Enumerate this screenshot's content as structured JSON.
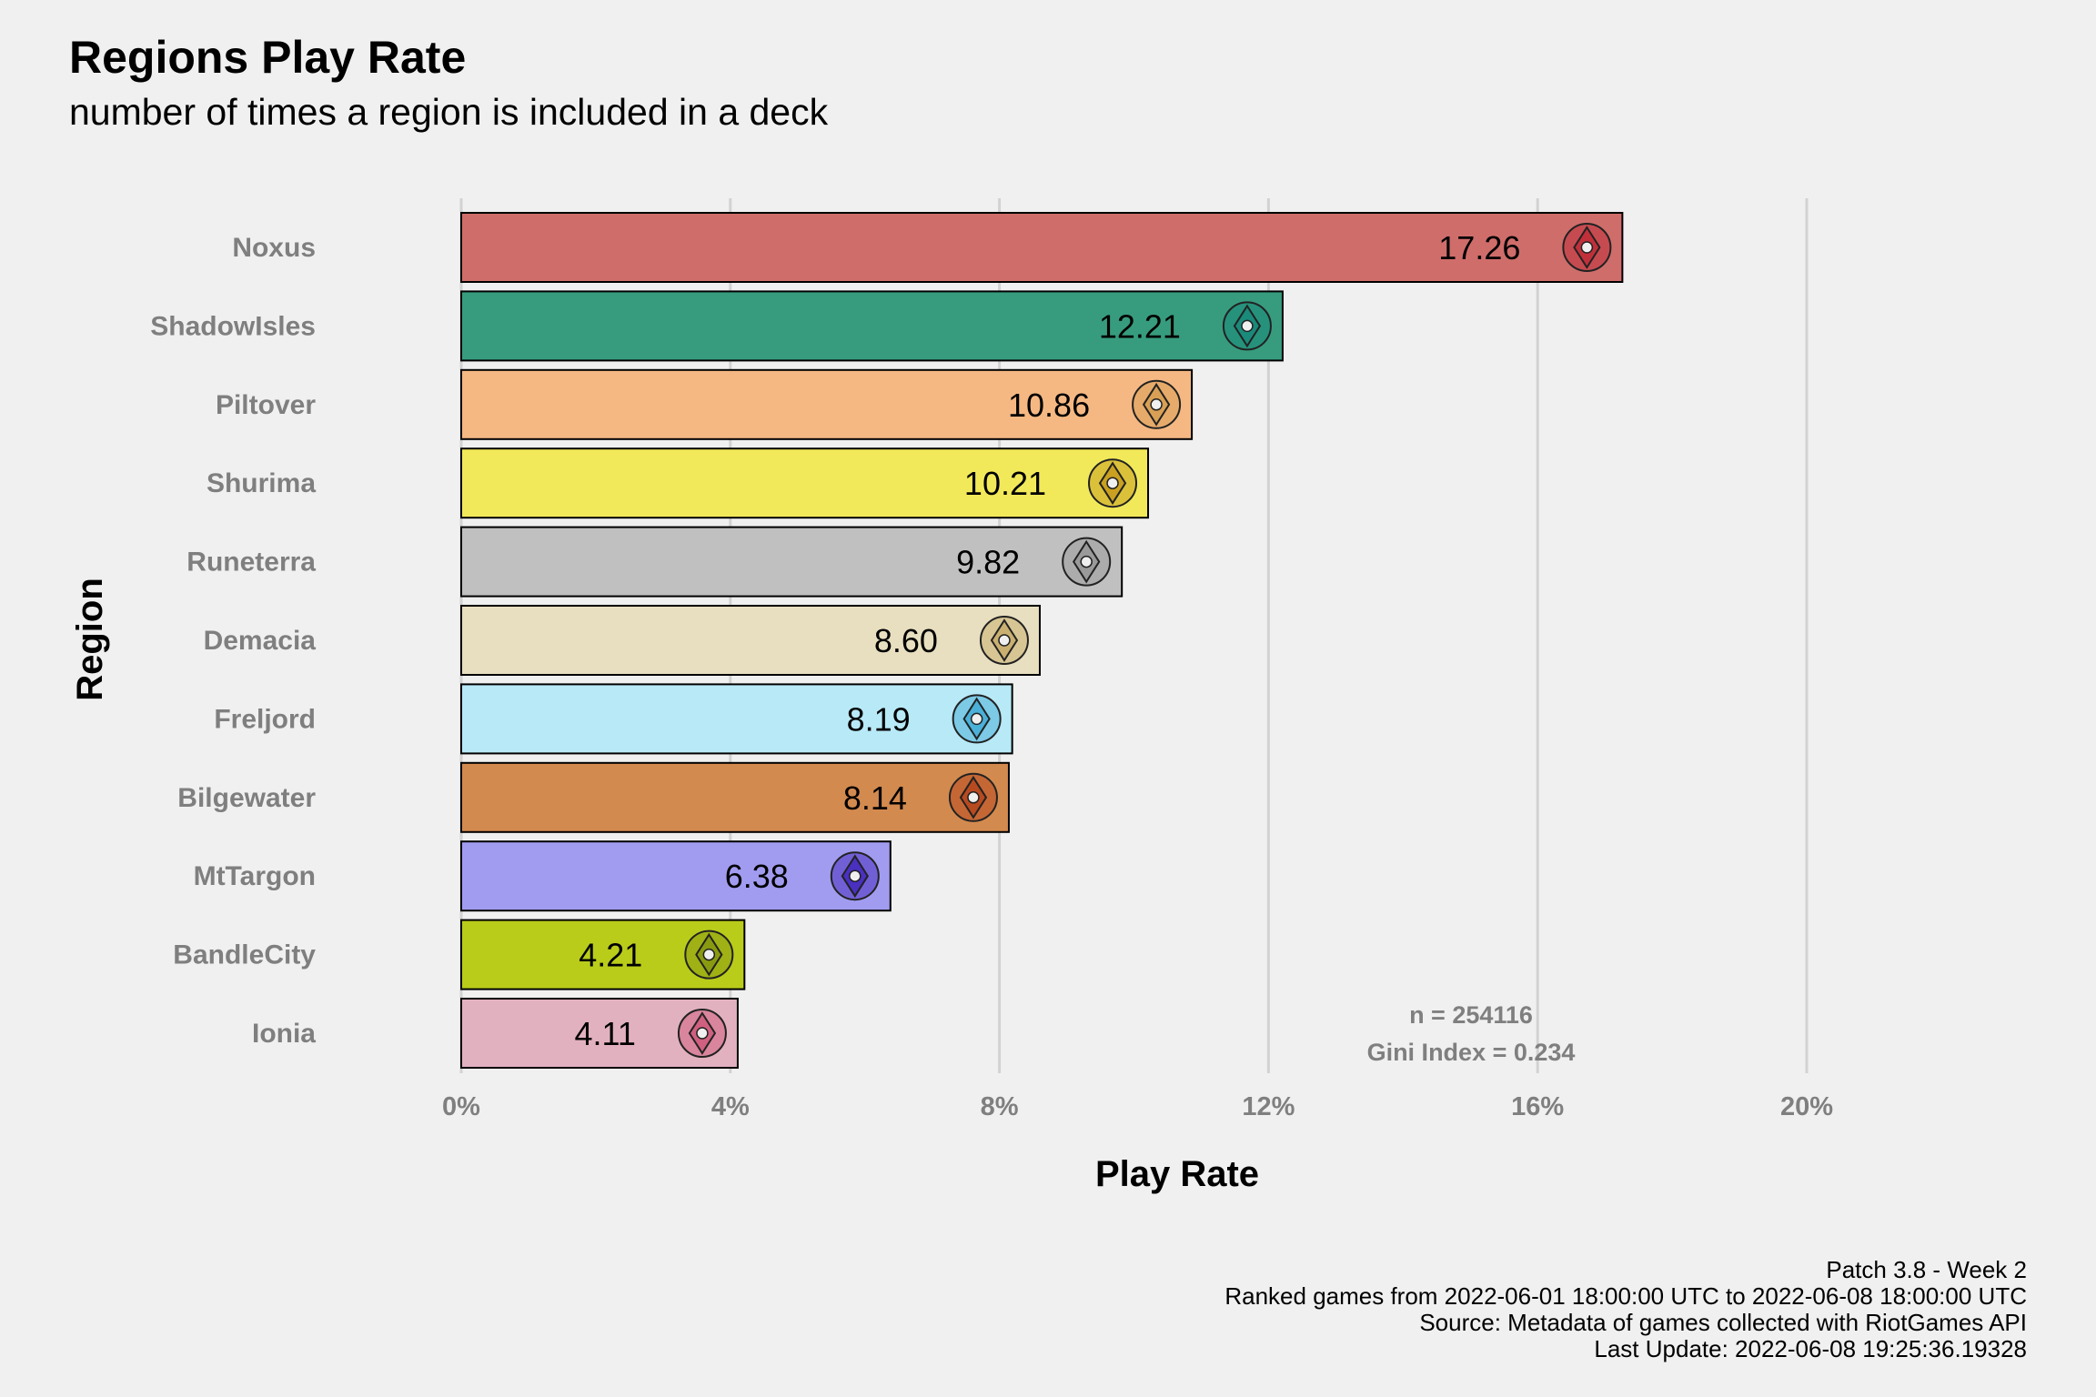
{
  "chart_data": {
    "type": "bar",
    "orientation": "horizontal",
    "title": "Regions Play Rate",
    "subtitle": "number of times a region is included in a deck",
    "xlabel": "Play Rate",
    "ylabel": "Region",
    "categories": [
      "Noxus",
      "ShadowIsles",
      "Piltover",
      "Shurima",
      "Runeterra",
      "Demacia",
      "Freljord",
      "Bilgewater",
      "MtTargon",
      "BandleCity",
      "Ionia"
    ],
    "values": [
      17.26,
      12.21,
      10.86,
      10.21,
      9.82,
      8.6,
      8.19,
      8.14,
      6.38,
      4.21,
      4.11
    ],
    "value_labels": [
      "17.26",
      "12.21",
      "10.86",
      "10.21",
      "9.82",
      "8.60",
      "8.19",
      "8.14",
      "6.38",
      "4.21",
      "4.11"
    ],
    "colors": [
      "#cf6d6b",
      "#379c7e",
      "#f5b883",
      "#f2e95a",
      "#c0c0c0",
      "#e8dfc0",
      "#b8e9f7",
      "#d38a4f",
      "#a19cf0",
      "#b9cc1a",
      "#e2b1c0"
    ],
    "icons": [
      "noxus-crest-icon",
      "shadow-isles-crest-icon",
      "piltover-crest-icon",
      "shurima-crest-icon",
      "runeterra-crest-icon",
      "demacia-crest-icon",
      "freljord-crest-icon",
      "bilgewater-crest-icon",
      "mt-targon-crest-icon",
      "bandle-city-crest-icon",
      "ionia-crest-icon"
    ],
    "icon_colors": [
      "#c0303a",
      "#1a8a7a",
      "#d9a055",
      "#c9a020",
      "#9a9a9a",
      "#c9b070",
      "#4ab0d8",
      "#b84a20",
      "#4a30c0",
      "#8a9a10",
      "#d06080"
    ],
    "xlim": [
      0,
      20
    ],
    "xticks": [
      0,
      4,
      8,
      12,
      16,
      20
    ],
    "xtick_labels": [
      "0%",
      "4%",
      "8%",
      "12%",
      "16%",
      "20%"
    ],
    "grid": "vertical major",
    "annotations": [
      "n = 254116",
      "Gini Index = 0.234"
    ]
  },
  "caption": [
    "Patch 3.8 - Week 2",
    "Ranked games from 2022-06-01 18:00:00 UTC to 2022-06-08 18:00:00 UTC",
    "Source: Metadata of games collected with RiotGames API",
    "Last Update: 2022-06-08 19:25:36.19328"
  ]
}
